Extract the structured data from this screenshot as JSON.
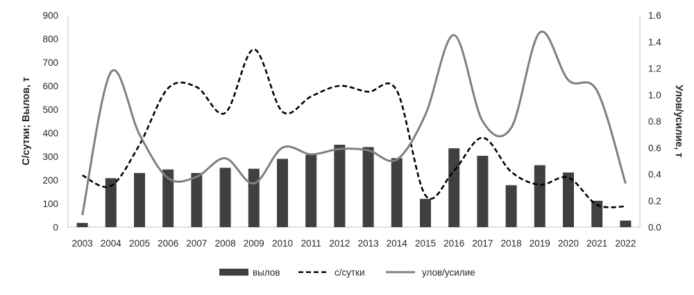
{
  "chart_data": {
    "type": "bar",
    "categories": [
      "2003",
      "2004",
      "2005",
      "2006",
      "2007",
      "2008",
      "2009",
      "2010",
      "2011",
      "2012",
      "2013",
      "2014",
      "2015",
      "2016",
      "2017",
      "2018",
      "2019",
      "2020",
      "2021",
      "2022"
    ],
    "series": [
      {
        "name": "вылов",
        "type": "bar",
        "axis": "left",
        "color": "#404040",
        "values": [
          18,
          208,
          230,
          245,
          230,
          252,
          248,
          290,
          307,
          350,
          340,
          293,
          120,
          335,
          303,
          178,
          263,
          232,
          112,
          28
        ]
      },
      {
        "name": "с/сутки",
        "type": "line",
        "style": "dashed",
        "axis": "left",
        "color": "#000000",
        "values": [
          220,
          175,
          350,
          590,
          595,
          485,
          755,
          490,
          555,
          600,
          575,
          580,
          135,
          240,
          380,
          235,
          180,
          210,
          95,
          88
        ]
      },
      {
        "name": "улов/усилие",
        "type": "line",
        "style": "solid",
        "axis": "right",
        "color": "#7f7f7f",
        "values": [
          0.09,
          1.17,
          0.7,
          0.37,
          0.38,
          0.52,
          0.33,
          0.6,
          0.55,
          0.59,
          0.58,
          0.51,
          0.85,
          1.45,
          0.8,
          0.75,
          1.47,
          1.11,
          1.03,
          0.33
        ]
      }
    ],
    "ylabel": "С/сутки; Вылов, т",
    "y2label": "Улов/усилие, т",
    "ylim": [
      0,
      900
    ],
    "yticks": [
      "0",
      "100",
      "200",
      "300",
      "400",
      "500",
      "600",
      "700",
      "800",
      "900"
    ],
    "y2lim": [
      0,
      1.6
    ],
    "y2ticks": [
      "0.0",
      "0.2",
      "0.4",
      "0.6",
      "0.8",
      "1.0",
      "1.2",
      "1.4",
      "1.6"
    ],
    "grid": false,
    "legend_position": "bottom"
  }
}
